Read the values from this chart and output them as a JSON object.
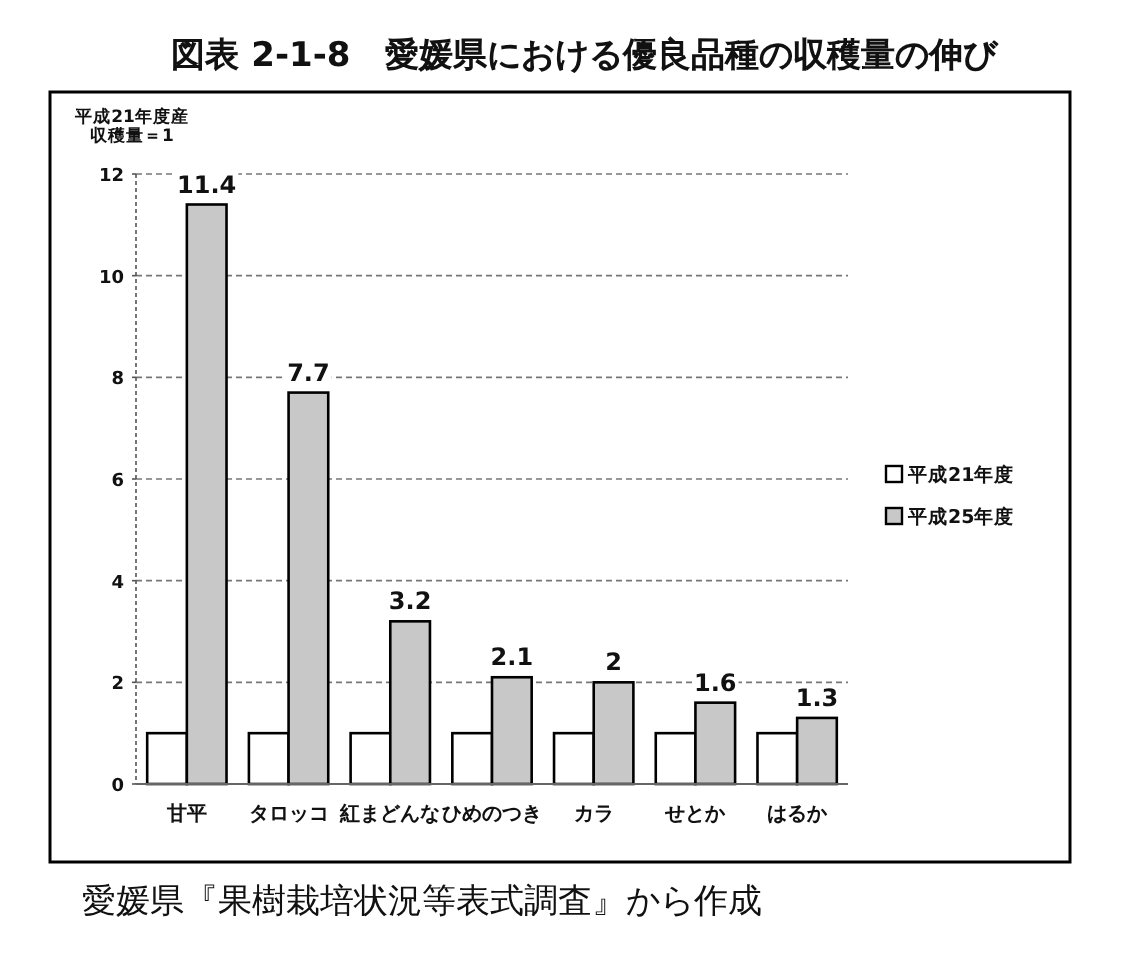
{
  "chart_data": {
    "type": "bar",
    "title": "図表 2-1-8　愛媛県における優良品種の収穫量の伸び",
    "ylabel": "平成21年度産収穫量＝1",
    "categories": [
      "甘平",
      "タロッコ",
      "紅まどんな",
      "ひめのつき",
      "カラ",
      "せとか",
      "はるか"
    ],
    "series": [
      {
        "name": "平成21年度",
        "color": "#ffffff",
        "values": [
          1,
          1,
          1,
          1,
          1,
          1,
          1
        ]
      },
      {
        "name": "平成25年度",
        "color": "#c8c8c8",
        "values": [
          11.4,
          7.7,
          3.2,
          2.1,
          2,
          1.6,
          1.3
        ],
        "value_labels": [
          "11.4",
          "7.7",
          "3.2",
          "2.1",
          "2",
          "1.6",
          "1.3"
        ]
      }
    ],
    "ylim": [
      0,
      12
    ],
    "yticks": [
      0,
      2,
      4,
      6,
      8,
      10,
      12
    ],
    "grid": "y",
    "legend": "right",
    "annotations": [
      "愛媛県『果樹栽培状況等表式調査』から作成"
    ]
  }
}
